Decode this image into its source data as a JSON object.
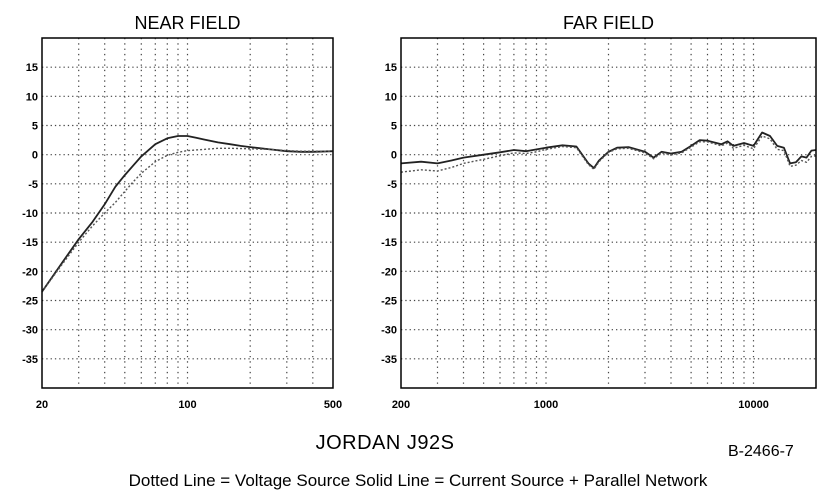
{
  "figure": {
    "model": "JORDAN J92S",
    "code": "B-2466-7",
    "legend_text": "Dotted Line = Voltage Source   Solid Line = Current Source + Parallel Network"
  },
  "chart_data": [
    {
      "type": "line",
      "title": "NEAR FIELD",
      "x_scale": "log",
      "xlim": [
        20,
        500
      ],
      "ylim": [
        -40,
        20
      ],
      "x_tick_labels": [
        "20",
        "100",
        "500"
      ],
      "x_tick_values": [
        20,
        100,
        500
      ],
      "y_tick_values": [
        15,
        10,
        5,
        0,
        -5,
        -10,
        -15,
        -20,
        -25,
        -30,
        -35
      ],
      "grid": true,
      "series": [
        {
          "style": "solid",
          "x": [
            20,
            25,
            30,
            35,
            40,
            45,
            50,
            55,
            60,
            70,
            80,
            90,
            100,
            110,
            120,
            140,
            160,
            180,
            200,
            250,
            300,
            350,
            400,
            500
          ],
          "y": [
            -23.5,
            -18.5,
            -14.5,
            -11.5,
            -8.5,
            -5.5,
            -3.5,
            -1.8,
            -0.3,
            1.8,
            2.8,
            3.2,
            3.2,
            2.9,
            2.6,
            2.1,
            1.8,
            1.5,
            1.3,
            0.9,
            0.6,
            0.5,
            0.5,
            0.6
          ]
        },
        {
          "style": "dotted",
          "x": [
            20,
            25,
            30,
            35,
            40,
            45,
            50,
            55,
            60,
            70,
            80,
            90,
            100,
            120,
            140,
            160,
            200,
            250,
            300,
            350,
            400,
            500
          ],
          "y": [
            -23.5,
            -18.8,
            -15,
            -12.2,
            -10,
            -8.2,
            -6.3,
            -4.6,
            -3.2,
            -1.2,
            -0.1,
            0.4,
            0.7,
            0.9,
            1.1,
            1.1,
            1.0,
            0.9,
            0.7,
            0.6,
            0.6,
            0.6
          ]
        }
      ]
    },
    {
      "type": "line",
      "title": "FAR FIELD",
      "x_scale": "log",
      "xlim": [
        200,
        20000
      ],
      "ylim": [
        -40,
        20
      ],
      "x_tick_labels": [
        "200",
        "1000",
        "10000"
      ],
      "x_tick_values": [
        200,
        1000,
        10000
      ],
      "y_tick_values": [
        15,
        10,
        5,
        0,
        -5,
        -10,
        -15,
        -20,
        -25,
        -30,
        -35
      ],
      "grid": true,
      "series": [
        {
          "style": "solid",
          "x": [
            200,
            250,
            300,
            350,
            400,
            500,
            600,
            700,
            800,
            900,
            1000,
            1200,
            1400,
            1600,
            1700,
            1800,
            2000,
            2200,
            2500,
            3000,
            3300,
            3600,
            4000,
            4500,
            5000,
            5500,
            6000,
            7000,
            7500,
            8000,
            9000,
            10000,
            11000,
            12000,
            13000,
            14000,
            15000,
            16000,
            17000,
            18000,
            19000,
            20000
          ],
          "y": [
            -1.5,
            -1.2,
            -1.5,
            -1.0,
            -0.5,
            0.0,
            0.4,
            0.8,
            0.6,
            0.9,
            1.2,
            1.6,
            1.4,
            -1.5,
            -2.3,
            -1.0,
            0.5,
            1.2,
            1.3,
            0.5,
            -0.5,
            0.5,
            0.2,
            0.5,
            1.5,
            2.5,
            2.4,
            1.8,
            2.3,
            1.5,
            2.0,
            1.5,
            3.8,
            3.2,
            1.5,
            1.2,
            -1.5,
            -1.3,
            -0.3,
            -0.5,
            0.7,
            0.8
          ]
        },
        {
          "style": "dotted",
          "x": [
            200,
            250,
            300,
            350,
            400,
            500,
            600,
            700,
            800,
            900,
            1000,
            1200,
            1400,
            1600,
            1700,
            1800,
            2000,
            2200,
            2500,
            3000,
            3300,
            3600,
            4000,
            4500,
            5000,
            5500,
            6000,
            7000,
            7500,
            8000,
            9000,
            10000,
            11000,
            12000,
            13000,
            14000,
            15000,
            16000,
            17000,
            18000,
            19000,
            20000
          ],
          "y": [
            -3.0,
            -2.6,
            -2.8,
            -2.2,
            -1.5,
            -0.8,
            -0.2,
            0.3,
            0.2,
            0.5,
            0.9,
            1.4,
            1.2,
            -1.7,
            -2.5,
            -1.2,
            0.4,
            1.0,
            1.1,
            0.3,
            -0.7,
            0.3,
            0.0,
            0.3,
            1.3,
            2.2,
            2.2,
            1.5,
            2.0,
            1.1,
            1.6,
            1.0,
            3.2,
            2.7,
            0.9,
            0.7,
            -2.0,
            -1.8,
            -1.0,
            -1.3,
            -0.3,
            -0.2
          ]
        }
      ]
    }
  ]
}
